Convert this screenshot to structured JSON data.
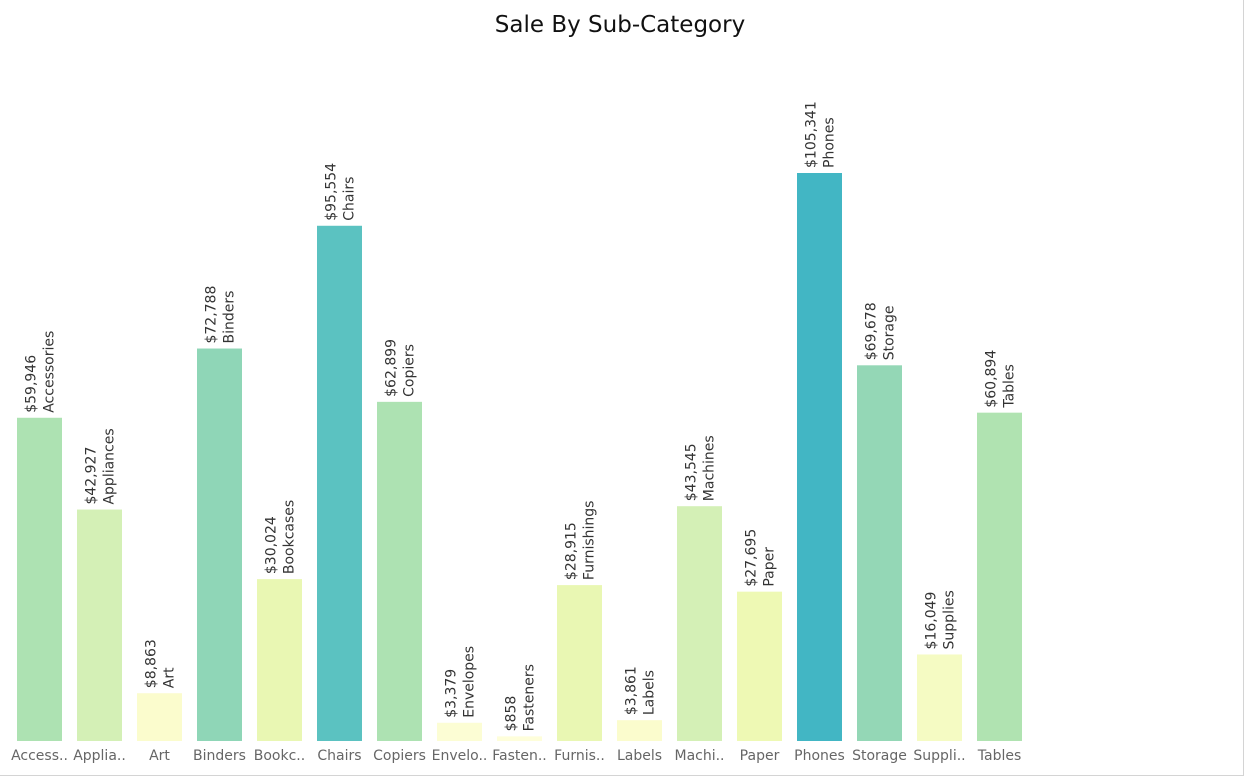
{
  "chart_data": {
    "type": "bar",
    "title": "Sale By Sub-Category",
    "categories": [
      "Accessories",
      "Appliances",
      "Art",
      "Binders",
      "Bookcases",
      "Chairs",
      "Copiers",
      "Envelopes",
      "Fasteners",
      "Furnishings",
      "Labels",
      "Machines",
      "Paper",
      "Phones",
      "Storage",
      "Supplies",
      "Tables"
    ],
    "tick_labels": [
      "Access..",
      "Applia..",
      "Art",
      "Binders",
      "Bookc..",
      "Chairs",
      "Copiers",
      "Envelo..",
      "Fasten..",
      "Furnis..",
      "Labels",
      "Machi..",
      "Paper",
      "Phones",
      "Storage",
      "Suppli..",
      "Tables"
    ],
    "values": [
      59946,
      42927,
      8863,
      72788,
      30024,
      95554,
      62899,
      3379,
      858,
      28915,
      3861,
      43545,
      27695,
      105341,
      69678,
      16049,
      60894
    ],
    "value_labels": [
      "$59,946",
      "$42,927",
      "$8,863",
      "$72,788",
      "$30,024",
      "$95,554",
      "$62,899",
      "$3,379",
      "$858",
      "$28,915",
      "$3,861",
      "$43,545",
      "$27,695",
      "$105,341",
      "$69,678",
      "$16,049",
      "$60,894"
    ],
    "colors": [
      "#ade2b2",
      "#d4f0b6",
      "#fbfccd",
      "#8fd6b7",
      "#e9f7b3",
      "#5bc2c1",
      "#ade2b2",
      "#fcfdd4",
      "#fefeda",
      "#e9f7b3",
      "#fbfccd",
      "#d4f0b6",
      "#eef9b4",
      "#42b6c4",
      "#94d7b6",
      "#f5fbc3",
      "#b0e3b1"
    ],
    "xlabel": "",
    "ylabel": "",
    "ylim": [
      0,
      105341
    ],
    "grid": false,
    "legend": "none"
  }
}
